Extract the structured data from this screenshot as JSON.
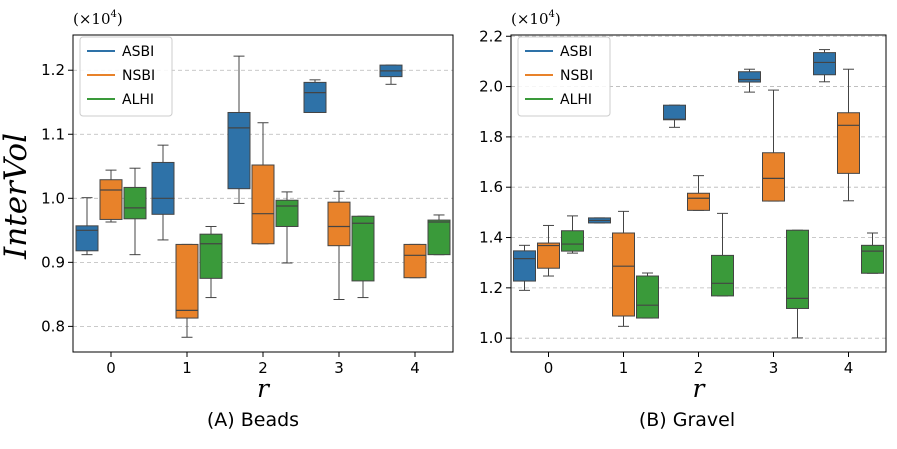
{
  "ylabel": "InterVol",
  "panels": [
    {
      "caption": "(A) Beads",
      "xlabel": "r",
      "multiplier": {
        "base": "(×10",
        "exp": "4",
        "close": ")"
      },
      "yticks": [
        "0.8",
        "0.9",
        "1.0",
        "1.1",
        "1.2"
      ],
      "xticks": [
        "0",
        "1",
        "2",
        "3",
        "4"
      ],
      "legend": [
        "ASBI",
        "NSBI",
        "ALHI"
      ]
    },
    {
      "caption": "(B) Gravel",
      "xlabel": "r",
      "multiplier": {
        "base": "(×10",
        "exp": "4",
        "close": ")"
      },
      "yticks": [
        "1.0",
        "1.2",
        "1.4",
        "1.6",
        "1.8",
        "2.0",
        "2.2"
      ],
      "xticks": [
        "0",
        "1",
        "2",
        "3",
        "4"
      ],
      "legend": [
        "ASBI",
        "NSBI",
        "ALHI"
      ]
    }
  ],
  "colors": {
    "ASBI": "#2e72a8",
    "NSBI": "#e8822a",
    "ALHI": "#3a9a3a"
  },
  "chart_data": [
    {
      "type": "box",
      "title": "(A) Beads",
      "xlabel": "r",
      "ylabel": "InterVol",
      "scale_note": "×10^4",
      "ylim": [
        0.76,
        1.255
      ],
      "grid": "y-dashed",
      "legend_position": "top-left",
      "categories": [
        0,
        1,
        2,
        3,
        4
      ],
      "series": [
        {
          "name": "ASBI",
          "boxes": [
            {
              "x": 0,
              "whislo": 0.912,
              "q1": 0.918,
              "med": 0.95,
              "q3": 0.957,
              "whishi": 1.001
            },
            {
              "x": 1,
              "whislo": 0.935,
              "q1": 0.975,
              "med": 1.0,
              "q3": 1.056,
              "whishi": 1.083
            },
            {
              "x": 2,
              "whislo": 0.992,
              "q1": 1.015,
              "med": 1.11,
              "q3": 1.134,
              "whishi": 1.222
            },
            {
              "x": 3,
              "whislo": 1.134,
              "q1": 1.134,
              "med": 1.165,
              "q3": 1.181,
              "whishi": 1.185
            },
            {
              "x": 4,
              "whislo": 1.178,
              "q1": 1.19,
              "med": 1.199,
              "q3": 1.208,
              "whishi": 1.208
            }
          ]
        },
        {
          "name": "NSBI",
          "boxes": [
            {
              "x": 0,
              "whislo": 0.963,
              "q1": 0.967,
              "med": 1.013,
              "q3": 1.029,
              "whishi": 1.044
            },
            {
              "x": 1,
              "whislo": 0.783,
              "q1": 0.813,
              "med": 0.825,
              "q3": 0.928,
              "whishi": 0.928
            },
            {
              "x": 2,
              "whislo": 0.929,
              "q1": 0.929,
              "med": 0.976,
              "q3": 1.052,
              "whishi": 1.118
            },
            {
              "x": 3,
              "whislo": 0.842,
              "q1": 0.926,
              "med": 0.956,
              "q3": 0.994,
              "whishi": 1.011
            },
            {
              "x": 4,
              "whislo": 0.876,
              "q1": 0.876,
              "med": 0.911,
              "q3": 0.928,
              "whishi": 0.928
            }
          ]
        },
        {
          "name": "ALHI",
          "boxes": [
            {
              "x": 0,
              "whislo": 0.912,
              "q1": 0.968,
              "med": 0.985,
              "q3": 1.017,
              "whishi": 1.047
            },
            {
              "x": 1,
              "whislo": 0.845,
              "q1": 0.875,
              "med": 0.929,
              "q3": 0.944,
              "whishi": 0.956
            },
            {
              "x": 2,
              "whislo": 0.899,
              "q1": 0.956,
              "med": 0.988,
              "q3": 0.997,
              "whishi": 1.01
            },
            {
              "x": 3,
              "whislo": 0.845,
              "q1": 0.871,
              "med": 0.961,
              "q3": 0.972,
              "whishi": 0.972
            },
            {
              "x": 4,
              "whislo": 0.912,
              "q1": 0.912,
              "med": 0.963,
              "q3": 0.966,
              "whishi": 0.974
            }
          ]
        }
      ]
    },
    {
      "type": "box",
      "title": "(B) Gravel",
      "xlabel": "r",
      "ylabel": "",
      "scale_note": "×10^4",
      "ylim": [
        0.945,
        2.205
      ],
      "grid": "y-dashed",
      "legend_position": "top-left",
      "categories": [
        0,
        1,
        2,
        3,
        4
      ],
      "series": [
        {
          "name": "ASBI",
          "boxes": [
            {
              "x": 0,
              "whislo": 1.19,
              "q1": 1.227,
              "med": 1.316,
              "q3": 1.347,
              "whishi": 1.369
            },
            {
              "x": 1,
              "whislo": 1.458,
              "q1": 1.458,
              "med": 1.468,
              "q3": 1.478,
              "whishi": 1.478
            },
            {
              "x": 2,
              "whislo": 1.838,
              "q1": 1.868,
              "med": 1.87,
              "q3": 1.926,
              "whishi": 1.926
            },
            {
              "x": 3,
              "whislo": 1.978,
              "q1": 2.018,
              "med": 2.028,
              "q3": 2.059,
              "whishi": 2.069
            },
            {
              "x": 4,
              "whislo": 2.019,
              "q1": 2.047,
              "med": 2.096,
              "q3": 2.135,
              "whishi": 2.147
            }
          ]
        },
        {
          "name": "NSBI",
          "boxes": [
            {
              "x": 0,
              "whislo": 1.247,
              "q1": 1.278,
              "med": 1.368,
              "q3": 1.378,
              "whishi": 1.448
            },
            {
              "x": 1,
              "whislo": 1.047,
              "q1": 1.088,
              "med": 1.286,
              "q3": 1.418,
              "whishi": 1.504
            },
            {
              "x": 2,
              "whislo": 1.508,
              "q1": 1.508,
              "med": 1.556,
              "q3": 1.576,
              "whishi": 1.646
            },
            {
              "x": 3,
              "whislo": 1.545,
              "q1": 1.545,
              "med": 1.635,
              "q3": 1.737,
              "whishi": 1.986
            },
            {
              "x": 4,
              "whislo": 1.546,
              "q1": 1.655,
              "med": 1.846,
              "q3": 1.896,
              "whishi": 2.069
            }
          ]
        },
        {
          "name": "ALHI",
          "boxes": [
            {
              "x": 0,
              "whislo": 1.338,
              "q1": 1.346,
              "med": 1.374,
              "q3": 1.427,
              "whishi": 1.486
            },
            {
              "x": 1,
              "whislo": 1.08,
              "q1": 1.08,
              "med": 1.131,
              "q3": 1.247,
              "whishi": 1.259
            },
            {
              "x": 2,
              "whislo": 1.168,
              "q1": 1.168,
              "med": 1.218,
              "q3": 1.329,
              "whishi": 1.496
            },
            {
              "x": 3,
              "whislo": 1.001,
              "q1": 1.118,
              "med": 1.158,
              "q3": 1.429,
              "whishi": 1.429
            },
            {
              "x": 4,
              "whislo": 1.258,
              "q1": 1.258,
              "med": 1.346,
              "q3": 1.369,
              "whishi": 1.418
            }
          ]
        }
      ]
    }
  ]
}
